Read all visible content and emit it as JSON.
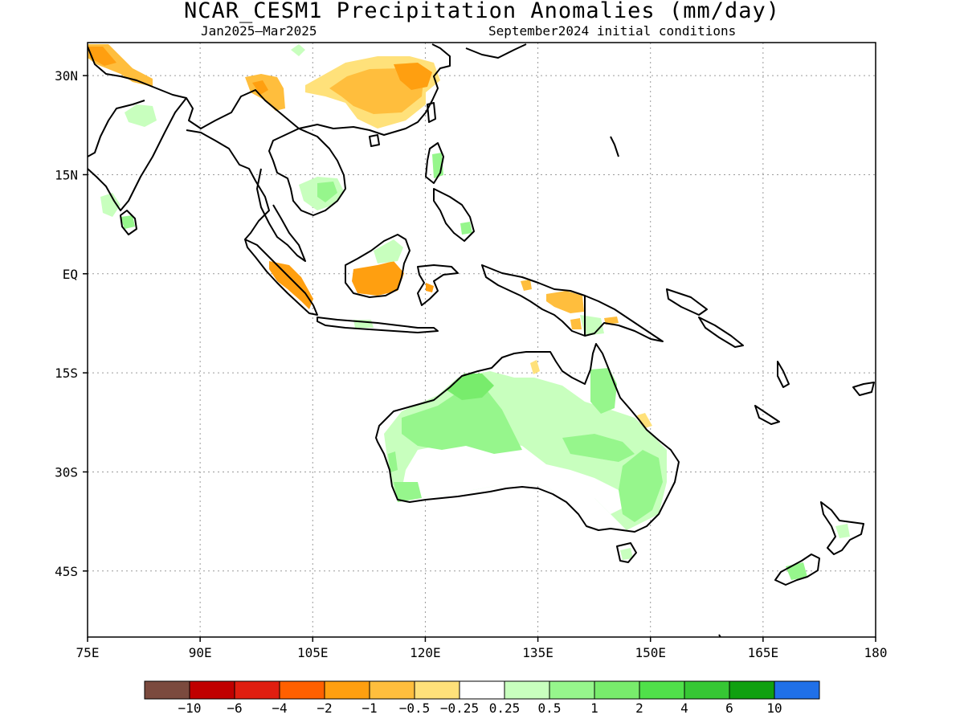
{
  "title": "NCAR_CESM1 Precipitation Anomalies (mm/day)",
  "subtitle_left": "Jan2025—Mar2025",
  "subtitle_right": "September2024 initial conditions",
  "map": {
    "lon_range": [
      75,
      180
    ],
    "lat_range": [
      -55,
      35
    ],
    "lon_ticks": [
      {
        "value": 75,
        "label": "75E"
      },
      {
        "value": 90,
        "label": "90E"
      },
      {
        "value": 105,
        "label": "105E"
      },
      {
        "value": 120,
        "label": "120E"
      },
      {
        "value": 135,
        "label": "135E"
      },
      {
        "value": 150,
        "label": "150E"
      },
      {
        "value": 165,
        "label": "165E"
      },
      {
        "value": 180,
        "label": "180"
      }
    ],
    "lat_ticks": [
      {
        "value": 30,
        "label": "30N"
      },
      {
        "value": 15,
        "label": "15N"
      },
      {
        "value": 0,
        "label": "EQ"
      },
      {
        "value": -15,
        "label": "15S"
      },
      {
        "value": -30,
        "label": "30S"
      },
      {
        "value": -45,
        "label": "45S"
      }
    ],
    "grid": "dotted"
  },
  "colorbar": {
    "colors": [
      "#7b4a3e",
      "#c00000",
      "#e01e10",
      "#ff6000",
      "#ff9f10",
      "#ffbe3d",
      "#ffe17a",
      "#ffffff",
      "#c8ffbe",
      "#96f68c",
      "#78ec6c",
      "#50e04a",
      "#36c734",
      "#10a010",
      "#2070e8"
    ],
    "labels": [
      "−10",
      "−6",
      "−4",
      "−2",
      "−1",
      "−0.5",
      "−0.25",
      "0.25",
      "0.5",
      "1",
      "2",
      "4",
      "6",
      "10"
    ]
  }
}
